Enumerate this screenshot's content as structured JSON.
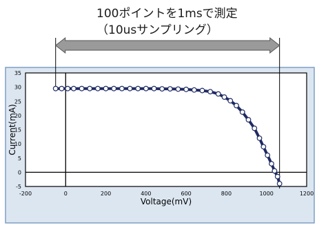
{
  "annotation": {
    "line1": "100ポイントを1msで測定",
    "line2": "（10usサンプリング）"
  },
  "chart_data": {
    "type": "scatter",
    "xlabel": "Voltage(mV)",
    "ylabel": "Current(mA)",
    "xlim": [
      -200,
      1200
    ],
    "ylim": [
      -5,
      35
    ],
    "xticks": [
      -200,
      0,
      200,
      400,
      600,
      800,
      1000,
      1200
    ],
    "yticks": [
      -5,
      0,
      5,
      10,
      15,
      20,
      25,
      30,
      35
    ],
    "grid": false,
    "legend": "none",
    "colors": {
      "panel_bg": "#dce6f1",
      "panel_border": "#7f9ec5",
      "curve": "#1f2a63",
      "marker_fill": "#ffffff",
      "arrow": "#9a9a9a"
    },
    "series": [
      {
        "x": [
          -50,
          -20,
          10,
          40,
          80,
          120,
          160,
          200,
          240,
          280,
          320,
          360,
          400,
          440,
          480,
          520,
          560,
          600,
          640,
          680,
          720,
          760,
          790,
          820,
          850,
          880,
          910,
          940,
          965,
          985,
          1005,
          1025,
          1040,
          1055,
          1065
        ],
        "y": [
          29.5,
          29.5,
          29.5,
          29.5,
          29.5,
          29.5,
          29.5,
          29.5,
          29.5,
          29.5,
          29.5,
          29.5,
          29.5,
          29.5,
          29.4,
          29.4,
          29.3,
          29.2,
          29.0,
          28.8,
          28.4,
          27.6,
          26.5,
          25.2,
          23.5,
          21.2,
          18.5,
          15.5,
          12,
          9,
          6,
          3,
          0.5,
          -1.5,
          -4
        ]
      }
    ]
  }
}
